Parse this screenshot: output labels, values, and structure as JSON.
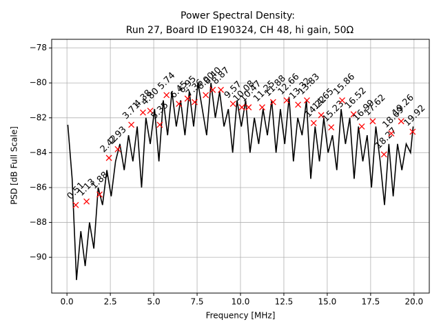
{
  "chart_data": {
    "type": "line",
    "title": "Power Spectral Density:",
    "subtitle": "Run 27, Board ID E190324, CH 48, hi gain, 50Ω",
    "xlabel": "Frequency [MHz]",
    "ylabel": "PSD [dB Full Scale]",
    "xlim": [
      -0.88,
      20.88
    ],
    "ylim": [
      -92.05,
      -77.5
    ],
    "xticks": [
      {
        "value": 0,
        "label": "0.0"
      },
      2.5,
      {
        "value": 5,
        "label": "5.0"
      },
      7.5,
      {
        "value": 10,
        "label": "10.0"
      },
      12.5,
      {
        "value": 15,
        "label": "15.0"
      },
      17.5,
      {
        "value": 20,
        "label": "20.0"
      }
    ],
    "yticks": [
      {
        "value": -90,
        "label": "−90"
      },
      {
        "value": -88,
        "label": "−88"
      },
      {
        "value": -86,
        "label": "−86"
      },
      {
        "value": -84,
        "label": "−84"
      },
      {
        "value": -82,
        "label": "−82"
      },
      {
        "value": -80,
        "label": "−80"
      },
      {
        "value": -78,
        "label": "−78"
      }
    ],
    "grid": true,
    "series": [
      {
        "color": "#000000",
        "x": [
          0.05,
          0.3,
          0.55,
          0.8,
          1.05,
          1.3,
          1.55,
          1.8,
          2.05,
          2.3,
          2.55,
          2.8,
          3.05,
          3.3,
          3.55,
          3.8,
          4.05,
          4.3,
          4.55,
          4.8,
          5.05,
          5.3,
          5.55,
          5.8,
          6.05,
          6.3,
          6.55,
          6.8,
          7.05,
          7.3,
          7.55,
          7.8,
          8.05,
          8.3,
          8.55,
          8.8,
          9.05,
          9.3,
          9.55,
          9.8,
          10.05,
          10.3,
          10.55,
          10.8,
          11.05,
          11.3,
          11.55,
          11.8,
          12.05,
          12.3,
          12.55,
          12.8,
          13.05,
          13.3,
          13.55,
          13.8,
          14.05,
          14.3,
          14.55,
          14.8,
          15.05,
          15.3,
          15.55,
          15.8,
          16.05,
          16.3,
          16.55,
          16.8,
          17.05,
          17.3,
          17.55,
          17.8,
          18.05,
          18.3,
          18.55,
          18.8,
          19.05,
          19.3,
          19.55,
          19.8,
          19.95
        ],
        "values": [
          -82.4,
          -85.5,
          -91.3,
          -88.5,
          -90.5,
          -88.0,
          -89.5,
          -86.0,
          -87.0,
          -85.0,
          -86.5,
          -84.5,
          -83.5,
          -85.0,
          -83.0,
          -84.5,
          -82.5,
          -86.0,
          -82.0,
          -83.5,
          -81.5,
          -84.5,
          -81.0,
          -83.0,
          -80.5,
          -82.5,
          -81.0,
          -83.0,
          -80.5,
          -82.5,
          -80.0,
          -81.5,
          -83.0,
          -80.0,
          -82.0,
          -80.5,
          -82.5,
          -81.5,
          -84.0,
          -81.0,
          -82.5,
          -81.0,
          -84.0,
          -82.0,
          -83.5,
          -81.5,
          -83.0,
          -81.0,
          -84.0,
          -81.5,
          -83.5,
          -80.8,
          -84.5,
          -82.0,
          -83.0,
          -81.0,
          -85.5,
          -82.5,
          -84.5,
          -82.0,
          -84.0,
          -83.0,
          -85.0,
          -81.5,
          -83.5,
          -82.0,
          -85.5,
          -82.5,
          -84.5,
          -83.0,
          -86.0,
          -82.5,
          -84.5,
          -87.0,
          -83.5,
          -86.5,
          -83.5,
          -85.0,
          -83.5,
          -84.0,
          -82.5
        ]
      },
      {
        "color": "#ff0000",
        "marker": "x",
        "x": [
          0.51,
          1.13,
          1.88,
          2.42,
          2.93,
          3.71,
          4.38,
          4.8,
          5.35,
          5.74,
          6.45,
          6.95,
          7.36,
          8.0,
          8.4,
          8.87,
          9.57,
          10.08,
          10.47,
          11.25,
          11.88,
          12.66,
          13.32,
          13.83,
          14.22,
          14.65,
          15.23,
          15.86,
          16.52,
          16.99,
          17.62,
          18.27,
          18.69,
          19.26,
          19.92
        ],
        "labels": [
          "0.51",
          "1.13",
          "1.88",
          "2.42",
          "2.93",
          "3.71",
          "4.38",
          "4.80",
          "5.35",
          "5.74",
          "6.45",
          "6.95",
          "7.36",
          "8.00",
          "8.40",
          "8.87",
          "9.57",
          "10.08",
          "10.47",
          "11.25",
          "11.88",
          "12.66",
          "13.32",
          "13.83",
          "14.22",
          "14.65",
          "15.23",
          "15.86",
          "16.52",
          "16.99",
          "17.62",
          "18.27",
          "18.69",
          "19.26",
          "19.92"
        ],
        "values": [
          -87.0,
          -86.8,
          -86.4,
          -84.3,
          -83.8,
          -82.4,
          -81.7,
          -81.6,
          -82.4,
          -80.7,
          -81.2,
          -80.9,
          -81.1,
          -80.7,
          -80.4,
          -80.4,
          -81.2,
          -81.4,
          -81.4,
          -81.4,
          -81.1,
          -81.0,
          -81.25,
          -81.0,
          -82.3,
          -81.85,
          -82.55,
          -81.0,
          -81.8,
          -82.5,
          -82.2,
          -84.1,
          -82.9,
          -82.2,
          -82.8
        ]
      }
    ]
  }
}
